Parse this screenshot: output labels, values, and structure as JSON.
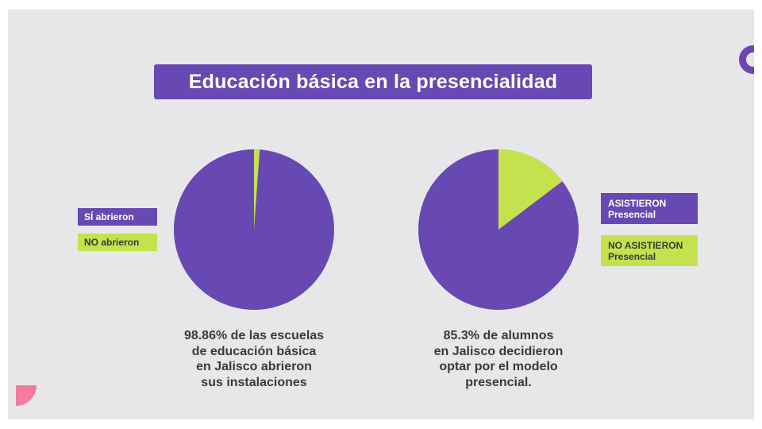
{
  "colors": {
    "purple": "#6848b3",
    "green": "#c3e24d",
    "background": "#e7e7ea",
    "pink": "#f27ca0"
  },
  "title": "Educación básica en la presencialidad",
  "chart_data": [
    {
      "type": "pie",
      "categories": [
        "SÍ abrieron",
        "NO abrieron"
      ],
      "values": [
        98.86,
        1.14
      ],
      "colors": [
        "#6848b3",
        "#c3e24d"
      ],
      "legend_position": "left",
      "caption": "98.86% de las escuelas\nde educación básica\nen Jalisco abrieron\nsus instalaciones"
    },
    {
      "type": "pie",
      "categories": [
        "ASISTIERON\nPresencial",
        "NO ASISTIERON\nPresencial"
      ],
      "values": [
        85.3,
        14.7
      ],
      "colors": [
        "#6848b3",
        "#c3e24d"
      ],
      "legend_position": "right",
      "caption": "85.3% de alumnos\nen Jalisco decidieron\noptar por el modelo\npresencial."
    }
  ]
}
